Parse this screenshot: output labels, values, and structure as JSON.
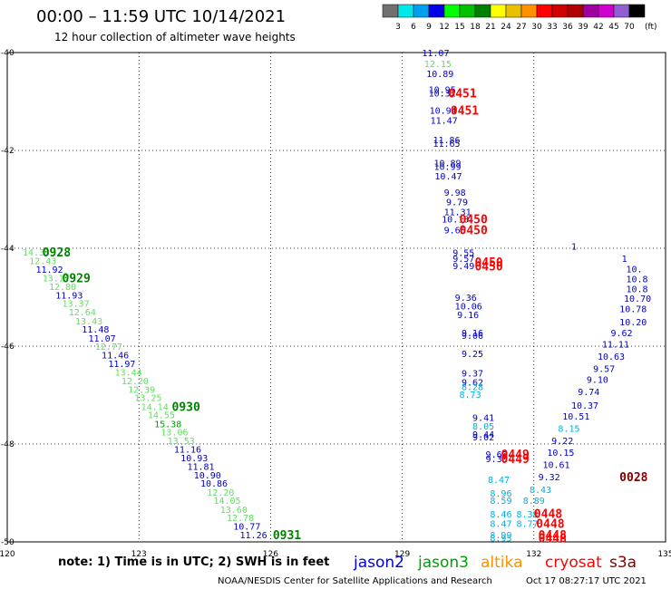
{
  "header": {
    "title": "00:00 – 11:59 UTC 10/14/2021",
    "subtitle": "12 hour collection of altimeter wave heights"
  },
  "colorbar": {
    "unit_label": "(ft)",
    "colors": [
      "#707070",
      "#00e8e8",
      "#00a0f0",
      "#0000e8",
      "#00ff00",
      "#00c000",
      "#008000",
      "#ffff00",
      "#e8c000",
      "#ff9000",
      "#ff0000",
      "#d00000",
      "#b00000",
      "#a000a0",
      "#d000d0",
      "#9060d0",
      "#000000"
    ],
    "ticks": [
      "3",
      "6",
      "9",
      "12",
      "15",
      "18",
      "21",
      "24",
      "27",
      "30",
      "33",
      "36",
      "39",
      "42",
      "45",
      "70"
    ]
  },
  "footer": {
    "note": "note: 1) Time is in UTC; 2) SWH is in feet",
    "credit": "NOAA/NESDIS Center for Satellite Applications and Research",
    "generated": "Oct 17 08:27:17 UTC 2021",
    "legend": [
      {
        "name": "jason2",
        "color": "#0000e0"
      },
      {
        "name": "jason3",
        "color": "#00a000"
      },
      {
        "name": "altika",
        "color": "#ff9000"
      },
      {
        "name": "cryosat",
        "color": "#ff0000"
      },
      {
        "name": "s3a",
        "color": "#800000"
      }
    ]
  },
  "chart_data": {
    "type": "scatter",
    "xlim": [
      120,
      135
    ],
    "ylim": [
      -50,
      -40
    ],
    "x_ticks": [
      120,
      123,
      126,
      129,
      132,
      135
    ],
    "x_tick_labels": [
      "120",
      "123",
      "126",
      "129",
      "132",
      "135"
    ],
    "y_ticks": [
      -40,
      -42,
      -44,
      -46,
      -48,
      -50
    ],
    "y_tick_labels": [
      "-40",
      "-42",
      "-44",
      "-46",
      "-48",
      "-50"
    ],
    "grid": true,
    "points": [
      {
        "x": 120.35,
        "y": -44.07,
        "label": "14.33",
        "color": "#60e060"
      },
      {
        "x": 120.5,
        "y": -44.25,
        "label": "12.43",
        "color": "#60e060"
      },
      {
        "x": 120.65,
        "y": -44.43,
        "label": "11.92",
        "color": "#0000c8"
      },
      {
        "x": 120.8,
        "y": -44.6,
        "label": "13.17",
        "color": "#60e060"
      },
      {
        "x": 120.95,
        "y": -44.78,
        "label": "12.80",
        "color": "#60e060"
      },
      {
        "x": 121.1,
        "y": -44.95,
        "label": "11.93",
        "color": "#0000c8"
      },
      {
        "x": 121.25,
        "y": -45.12,
        "label": "13.37",
        "color": "#60e060"
      },
      {
        "x": 121.4,
        "y": -45.3,
        "label": "12.64",
        "color": "#60e060"
      },
      {
        "x": 121.55,
        "y": -45.48,
        "label": "13.43",
        "color": "#60e060"
      },
      {
        "x": 121.7,
        "y": -45.65,
        "label": "11.48",
        "color": "#0000c8"
      },
      {
        "x": 121.85,
        "y": -45.83,
        "label": "11.07",
        "color": "#0000c8"
      },
      {
        "x": 122.0,
        "y": -46.0,
        "label": "12.77",
        "color": "#60e060"
      },
      {
        "x": 122.15,
        "y": -46.18,
        "label": "11.46",
        "color": "#0000c8"
      },
      {
        "x": 122.3,
        "y": -46.35,
        "label": "11.97",
        "color": "#0000c8"
      },
      {
        "x": 122.45,
        "y": -46.53,
        "label": "13.44",
        "color": "#60e060"
      },
      {
        "x": 122.6,
        "y": -46.7,
        "label": "12.20",
        "color": "#60e060"
      },
      {
        "x": 122.75,
        "y": -46.88,
        "label": "12.39",
        "color": "#60e060"
      },
      {
        "x": 122.9,
        "y": -47.05,
        "label": "13.25",
        "color": "#60e060"
      },
      {
        "x": 123.05,
        "y": -47.23,
        "label": "14.14",
        "color": "#60e060"
      },
      {
        "x": 123.2,
        "y": -47.4,
        "label": "14.55",
        "color": "#60e060"
      },
      {
        "x": 123.35,
        "y": -47.58,
        "label": "15.38",
        "color": "#00a000"
      },
      {
        "x": 123.5,
        "y": -47.75,
        "label": "13.06",
        "color": "#60e060"
      },
      {
        "x": 123.65,
        "y": -47.93,
        "label": "13.53",
        "color": "#60e060"
      },
      {
        "x": 123.8,
        "y": -48.1,
        "label": "11.16",
        "color": "#0000c8"
      },
      {
        "x": 123.95,
        "y": -48.28,
        "label": "10.93",
        "color": "#0000c8"
      },
      {
        "x": 124.1,
        "y": -48.45,
        "label": "11.81",
        "color": "#0000c8"
      },
      {
        "x": 124.25,
        "y": -48.63,
        "label": "10.90",
        "color": "#0000c8"
      },
      {
        "x": 124.4,
        "y": -48.8,
        "label": "10.86",
        "color": "#0000c8"
      },
      {
        "x": 124.55,
        "y": -48.98,
        "label": "12.20",
        "color": "#60e060"
      },
      {
        "x": 124.7,
        "y": -49.15,
        "label": "14.05",
        "color": "#60e060"
      },
      {
        "x": 124.85,
        "y": -49.33,
        "label": "13.60",
        "color": "#60e060"
      },
      {
        "x": 125.0,
        "y": -49.5,
        "label": "12.78",
        "color": "#60e060"
      },
      {
        "x": 125.15,
        "y": -49.68,
        "label": "10.77",
        "color": "#0000c8"
      },
      {
        "x": 125.3,
        "y": -49.85,
        "label": "11.26",
        "color": "#0000c8"
      },
      {
        "x": 129.45,
        "y": -40.0,
        "label": "11.07",
        "color": "#0000c8"
      },
      {
        "x": 129.5,
        "y": -40.22,
        "label": "12.15",
        "color": "#60e060"
      },
      {
        "x": 129.55,
        "y": -40.43,
        "label": "10.89",
        "color": "#0000c8"
      },
      {
        "x": 129.6,
        "y": -40.75,
        "label": "10.95",
        "color": "#0000c8"
      },
      {
        "x": 129.6,
        "y": -40.82,
        "label": "10.32",
        "color": "#0000c8"
      },
      {
        "x": 129.62,
        "y": -41.18,
        "label": "10.94",
        "color": "#0000c8"
      },
      {
        "x": 129.64,
        "y": -41.38,
        "label": "11.47",
        "color": "#0000c8"
      },
      {
        "x": 129.7,
        "y": -41.78,
        "label": "11.86",
        "color": "#0000c8"
      },
      {
        "x": 129.7,
        "y": -41.85,
        "label": "11.65",
        "color": "#0000c8"
      },
      {
        "x": 129.72,
        "y": -42.25,
        "label": "10.89",
        "color": "#0000c8"
      },
      {
        "x": 129.72,
        "y": -42.32,
        "label": "10.99",
        "color": "#0000c8"
      },
      {
        "x": 129.74,
        "y": -42.52,
        "label": "10.47",
        "color": "#0000c8"
      },
      {
        "x": 129.95,
        "y": -42.85,
        "label": "9.98",
        "color": "#0000c8"
      },
      {
        "x": 130.0,
        "y": -43.05,
        "label": "9.79",
        "color": "#0000c8"
      },
      {
        "x": 129.95,
        "y": -43.25,
        "label": "11.31",
        "color": "#0000c8"
      },
      {
        "x": 129.9,
        "y": -43.4,
        "label": "10.18",
        "color": "#0000c8"
      },
      {
        "x": 129.95,
        "y": -43.62,
        "label": "9.66",
        "color": "#0000c8"
      },
      {
        "x": 130.15,
        "y": -44.08,
        "label": "9.55",
        "color": "#0000c8"
      },
      {
        "x": 130.15,
        "y": -44.2,
        "label": "9.57",
        "color": "#0000c8"
      },
      {
        "x": 130.15,
        "y": -44.35,
        "label": "9.49",
        "color": "#0000c8"
      },
      {
        "x": 130.2,
        "y": -45.0,
        "label": "9.36",
        "color": "#0000c8"
      },
      {
        "x": 130.2,
        "y": -45.18,
        "label": "10.06",
        "color": "#0000c8"
      },
      {
        "x": 130.25,
        "y": -45.35,
        "label": "9.16",
        "color": "#0000c8"
      },
      {
        "x": 130.35,
        "y": -45.72,
        "label": "9.16",
        "color": "#0000c8"
      },
      {
        "x": 130.35,
        "y": -45.78,
        "label": "9.06",
        "color": "#0000c8"
      },
      {
        "x": 130.35,
        "y": -46.15,
        "label": "9.25",
        "color": "#0000c8"
      },
      {
        "x": 130.35,
        "y": -46.55,
        "label": "9.37",
        "color": "#0000c8"
      },
      {
        "x": 130.35,
        "y": -46.73,
        "label": "9.62",
        "color": "#0000c8"
      },
      {
        "x": 130.35,
        "y": -46.82,
        "label": "8.28",
        "color": "#00b0e0"
      },
      {
        "x": 130.3,
        "y": -46.98,
        "label": "8.73",
        "color": "#00b0e0"
      },
      {
        "x": 130.6,
        "y": -47.45,
        "label": "9.41",
        "color": "#0000c8"
      },
      {
        "x": 130.6,
        "y": -47.63,
        "label": "8.05",
        "color": "#00b0e0"
      },
      {
        "x": 130.6,
        "y": -47.8,
        "label": "9.44",
        "color": "#0000c8"
      },
      {
        "x": 130.6,
        "y": -47.85,
        "label": "9.02",
        "color": "#0000c8"
      },
      {
        "x": 130.9,
        "y": -48.2,
        "label": "9.62",
        "color": "#0000c8"
      },
      {
        "x": 130.9,
        "y": -48.3,
        "label": "9.30",
        "color": "#0000c8"
      },
      {
        "x": 130.95,
        "y": -48.72,
        "label": "8.47",
        "color": "#00b0e0"
      },
      {
        "x": 131.0,
        "y": -49.0,
        "label": "8.96",
        "color": "#00b0e0"
      },
      {
        "x": 131.0,
        "y": -49.15,
        "label": "8.59",
        "color": "#00b0e0"
      },
      {
        "x": 131.0,
        "y": -49.43,
        "label": "8.46",
        "color": "#00b0e0"
      },
      {
        "x": 131.0,
        "y": -49.62,
        "label": "8.47",
        "color": "#00b0e0"
      },
      {
        "x": 131.0,
        "y": -49.85,
        "label": "8.99",
        "color": "#00b0e0"
      },
      {
        "x": 131.0,
        "y": -49.92,
        "label": "8.95",
        "color": "#00b0e0"
      },
      {
        "x": 132.85,
        "y": -43.95,
        "label": "1",
        "color": "#0000c8"
      },
      {
        "x": 134.0,
        "y": -44.2,
        "label": "1",
        "color": "#0000c8"
      },
      {
        "x": 134.1,
        "y": -44.42,
        "label": "10.",
        "color": "#0000c8"
      },
      {
        "x": 134.1,
        "y": -44.62,
        "label": "10.8",
        "color": "#0000c8"
      },
      {
        "x": 134.1,
        "y": -44.82,
        "label": "10.8",
        "color": "#0000c8"
      },
      {
        "x": 134.05,
        "y": -45.02,
        "label": "10.70",
        "color": "#0000c8"
      },
      {
        "x": 133.95,
        "y": -45.23,
        "label": "10.78",
        "color": "#0000c8"
      },
      {
        "x": 133.95,
        "y": -45.5,
        "label": "10.20",
        "color": "#0000c8"
      },
      {
        "x": 133.75,
        "y": -45.72,
        "label": "9.62",
        "color": "#0000c8"
      },
      {
        "x": 133.55,
        "y": -45.95,
        "label": "11.11",
        "color": "#0000c8"
      },
      {
        "x": 133.45,
        "y": -46.2,
        "label": "10.63",
        "color": "#0000c8"
      },
      {
        "x": 133.35,
        "y": -46.45,
        "label": "9.57",
        "color": "#0000c8"
      },
      {
        "x": 133.2,
        "y": -46.68,
        "label": "9.10",
        "color": "#0000c8"
      },
      {
        "x": 133.0,
        "y": -46.93,
        "label": "9.74",
        "color": "#0000c8"
      },
      {
        "x": 132.85,
        "y": -47.2,
        "label": "10.37",
        "color": "#0000c8"
      },
      {
        "x": 132.65,
        "y": -47.43,
        "label": "10.51",
        "color": "#0000c8"
      },
      {
        "x": 132.55,
        "y": -47.68,
        "label": "8.15",
        "color": "#00b0e0"
      },
      {
        "x": 132.4,
        "y": -47.93,
        "label": "9.22",
        "color": "#0000c8"
      },
      {
        "x": 132.3,
        "y": -48.17,
        "label": "10.15",
        "color": "#0000c8"
      },
      {
        "x": 132.2,
        "y": -48.42,
        "label": "10.61",
        "color": "#0000c8"
      },
      {
        "x": 132.1,
        "y": -48.67,
        "label": "9.32",
        "color": "#0000c8"
      },
      {
        "x": 131.9,
        "y": -48.93,
        "label": "8.43",
        "color": "#00b0e0"
      },
      {
        "x": 131.75,
        "y": -49.15,
        "label": "8.89",
        "color": "#00b0e0"
      },
      {
        "x": 131.6,
        "y": -49.43,
        "label": "8.38",
        "color": "#00b0e0"
      },
      {
        "x": 131.6,
        "y": -49.62,
        "label": "8.77",
        "color": "#00b0e0"
      }
    ],
    "time_labels": [
      {
        "x": 120.8,
        "y": -44.07,
        "label": "0928",
        "color": "#008000"
      },
      {
        "x": 121.25,
        "y": -44.6,
        "label": "0929",
        "color": "#008000"
      },
      {
        "x": 123.75,
        "y": -47.23,
        "label": "0930",
        "color": "#008000"
      },
      {
        "x": 126.05,
        "y": -49.85,
        "label": "0931",
        "color": "#008000"
      },
      {
        "x": 130.05,
        "y": -40.82,
        "label": "0451",
        "color": "#ff0000"
      },
      {
        "x": 130.1,
        "y": -41.18,
        "label": "0451",
        "color": "#ff0000"
      },
      {
        "x": 130.3,
        "y": -43.4,
        "label": "0450",
        "color": "#ff0000"
      },
      {
        "x": 130.3,
        "y": -43.62,
        "label": "0450",
        "color": "#ff0000"
      },
      {
        "x": 130.65,
        "y": -44.28,
        "label": "0450",
        "color": "#ff0000"
      },
      {
        "x": 130.65,
        "y": -44.36,
        "label": "0450",
        "color": "#ff0000"
      },
      {
        "x": 131.25,
        "y": -48.2,
        "label": "0449",
        "color": "#ff0000"
      },
      {
        "x": 131.25,
        "y": -48.3,
        "label": "0449",
        "color": "#ff0000"
      },
      {
        "x": 132.0,
        "y": -49.42,
        "label": "0448",
        "color": "#ff0000"
      },
      {
        "x": 132.05,
        "y": -49.62,
        "label": "0448",
        "color": "#ff0000"
      },
      {
        "x": 132.1,
        "y": -49.85,
        "label": "0448",
        "color": "#ff0000"
      },
      {
        "x": 132.1,
        "y": -49.92,
        "label": "0448",
        "color": "#ff0000"
      },
      {
        "x": 133.95,
        "y": -48.67,
        "label": "0028",
        "color": "#800000"
      }
    ]
  }
}
